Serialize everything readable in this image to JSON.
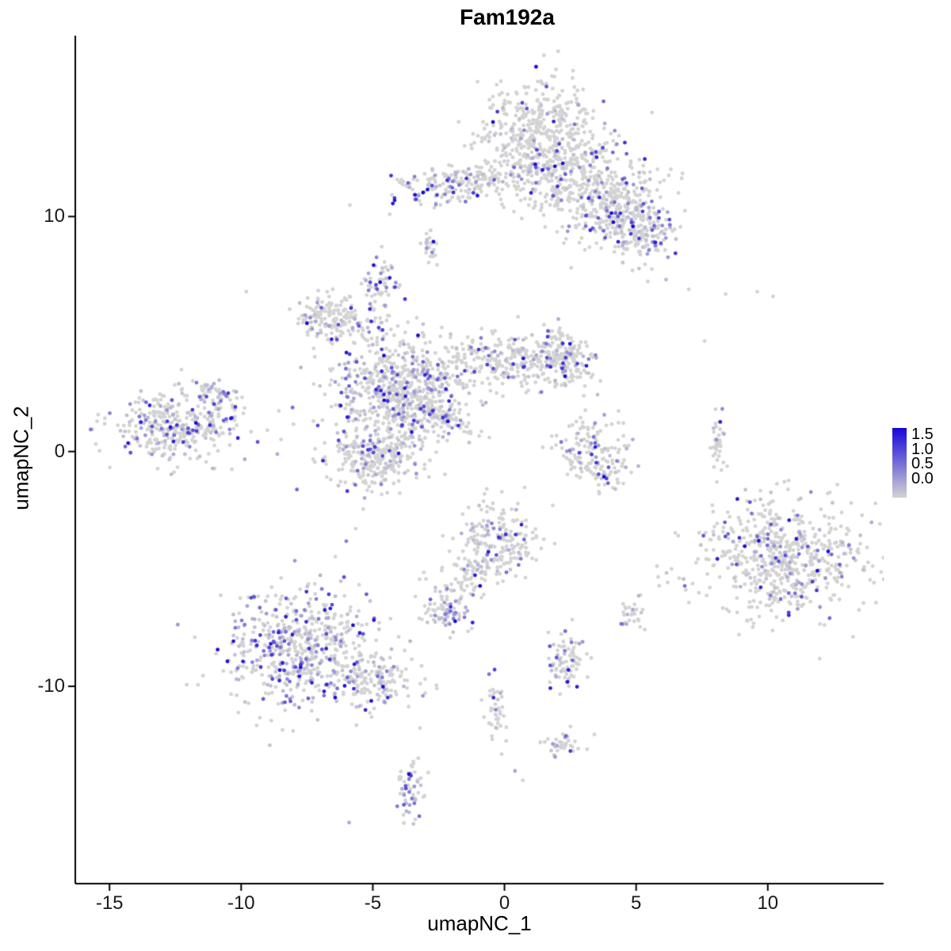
{
  "chart_data": {
    "type": "scatter",
    "title": "Fam192a",
    "xlabel": "umapNC_1",
    "ylabel": "umapNC_2",
    "xlim": [
      -16.3,
      14.4
    ],
    "ylim": [
      -18.4,
      17.7
    ],
    "x_ticks": [
      "-15",
      "-10",
      "-5",
      "0",
      "5",
      "10"
    ],
    "x_tick_values": [
      -15,
      -10,
      -5,
      0,
      5,
      10
    ],
    "y_ticks": [
      "10",
      "0",
      "-10"
    ],
    "y_tick_values": [
      10,
      0,
      -10
    ],
    "grid": false,
    "background_color": "#FFFFFF",
    "axis_color": "#000000",
    "point_color_low": "#D3D3D3",
    "point_color_high": "#1607D9",
    "point_radius_px": 2.4,
    "legend": {
      "position": "right",
      "ticks": [
        "1.5",
        "1.0",
        "0.5",
        "0.0"
      ],
      "min": 0.0,
      "max": 1.5
    },
    "cluster_format": [
      "cx",
      "cy",
      "sx",
      "sy",
      "n",
      "p_expressed",
      "rot_deg"
    ],
    "clusters": [
      [
        1.5,
        13.5,
        1.2,
        1.1,
        480,
        0.1,
        0
      ],
      [
        2.2,
        11.5,
        1.3,
        0.8,
        240,
        0.14,
        0
      ],
      [
        4.3,
        10.3,
        1.0,
        0.9,
        330,
        0.22,
        0
      ],
      [
        5.4,
        9.2,
        0.5,
        0.6,
        110,
        0.28,
        0
      ],
      [
        -2.2,
        11.3,
        1.0,
        0.38,
        150,
        0.38,
        8
      ],
      [
        -0.6,
        11.6,
        0.5,
        0.3,
        50,
        0.15,
        0
      ],
      [
        -2.8,
        8.6,
        0.18,
        0.4,
        26,
        0.2,
        0
      ],
      [
        -4.7,
        7.0,
        0.3,
        0.5,
        60,
        0.45,
        0
      ],
      [
        -6.3,
        5.6,
        0.85,
        0.55,
        190,
        0.15,
        0
      ],
      [
        -4.0,
        2.6,
        1.25,
        1.15,
        650,
        0.28,
        0
      ],
      [
        0.0,
        3.9,
        1.5,
        0.65,
        280,
        0.18,
        0
      ],
      [
        2.2,
        3.9,
        0.55,
        0.6,
        150,
        0.22,
        0
      ],
      [
        -5.0,
        -0.3,
        0.9,
        0.7,
        270,
        0.18,
        0
      ],
      [
        -2.4,
        1.5,
        0.85,
        0.18,
        90,
        0.15,
        -28
      ],
      [
        -12.5,
        1.1,
        1.15,
        0.75,
        360,
        0.32,
        0
      ],
      [
        -10.9,
        2.5,
        0.45,
        0.22,
        40,
        0.3,
        -25
      ],
      [
        3.2,
        0.2,
        0.7,
        0.75,
        120,
        0.18,
        0
      ],
      [
        3.8,
        -0.9,
        0.5,
        0.3,
        50,
        0.18,
        0
      ],
      [
        8.1,
        0.3,
        0.15,
        0.55,
        40,
        0.12,
        0
      ],
      [
        10.5,
        -4.6,
        1.5,
        1.25,
        620,
        0.2,
        0
      ],
      [
        -7.6,
        -8.4,
        1.45,
        1.25,
        580,
        0.42,
        0
      ],
      [
        -4.9,
        -9.7,
        0.8,
        0.5,
        130,
        0.22,
        0
      ],
      [
        -0.3,
        -3.9,
        0.8,
        0.85,
        210,
        0.22,
        0
      ],
      [
        -1.6,
        -5.5,
        0.6,
        0.4,
        60,
        0.2,
        0
      ],
      [
        -2.2,
        -6.8,
        0.45,
        0.4,
        70,
        0.5,
        0
      ],
      [
        4.9,
        -7.0,
        0.25,
        0.35,
        30,
        0.3,
        0
      ],
      [
        2.4,
        -8.9,
        0.4,
        0.6,
        80,
        0.25,
        0
      ],
      [
        -0.3,
        -11.0,
        0.2,
        0.75,
        42,
        0.2,
        0
      ],
      [
        2.3,
        -12.4,
        0.4,
        0.3,
        36,
        0.2,
        0
      ],
      [
        -3.6,
        -14.3,
        0.25,
        0.85,
        60,
        0.38,
        0
      ]
    ],
    "single_points_format": [
      "x",
      "y",
      "expression"
    ],
    "single_points": [
      [
        2.3,
        3.2,
        1.55
      ],
      [
        7.0,
        6.9,
        0
      ],
      [
        8.4,
        6.7,
        0
      ],
      [
        9.6,
        6.8,
        0
      ],
      [
        10.2,
        6.6,
        0
      ],
      [
        7.6,
        4.7,
        0
      ],
      [
        -5.9,
        -15.8,
        0.3
      ],
      [
        0.4,
        -13.6,
        0.35
      ],
      [
        0.7,
        -14.0,
        0
      ]
    ]
  }
}
